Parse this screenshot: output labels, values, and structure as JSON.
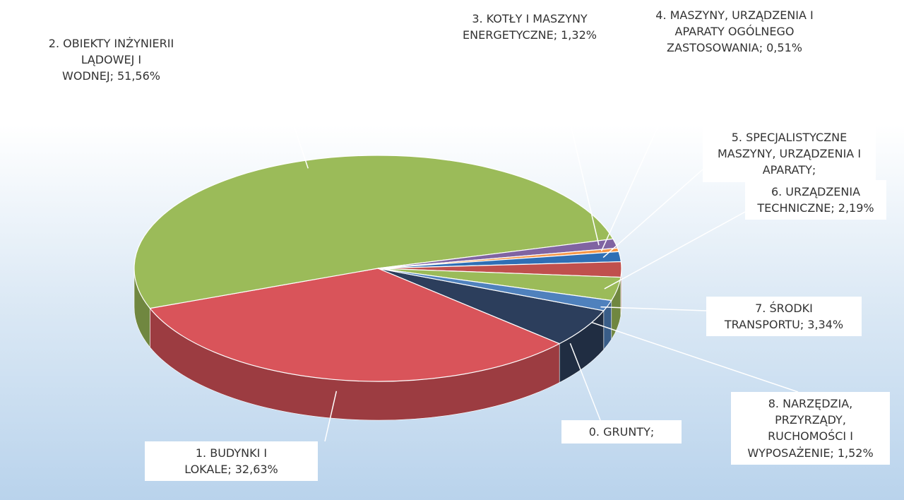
{
  "chart_data": {
    "type": "pie",
    "categories": [
      "0. GRUNTY;",
      "1. BUDYNKI I LOKALE;",
      "2. OBIEKTY INŻYNIERII LĄDOWEJ I WODNEJ;",
      "3. KOTŁY I MASZYNY ENERGETYCZNE;",
      "4. MASZYNY, URZĄDZENIA I APARATY OGÓLNEGO ZASTOSOWANIA;",
      "5. SPECJALISTYCZNE MASZYNY, URZĄDZENIA I APARATY;",
      "6. URZĄDZENIA TECHNICZNE;",
      "7. ŚRODKI TRANSPORTU;",
      "8. NARZĘDZIA, PRZYRZĄDY, RUCHOMOŚCI I WYPOSAŻENIE;"
    ],
    "values": [
      5.5,
      32.63,
      51.56,
      1.32,
      0.51,
      1.43,
      2.19,
      3.34,
      1.52
    ],
    "value_labels": [
      null,
      "32,63%",
      "51,56%",
      "1,32%",
      "0,51%",
      null,
      "2,19%",
      "3,34%",
      "1,52%"
    ],
    "colors": [
      "#2c3e5c",
      "#d9545a",
      "#9bbb59",
      "#8064a2",
      "#f79646",
      "#2f6fb5",
      "#c0504d",
      "#9bbb59",
      "#4f81bd"
    ]
  }
}
